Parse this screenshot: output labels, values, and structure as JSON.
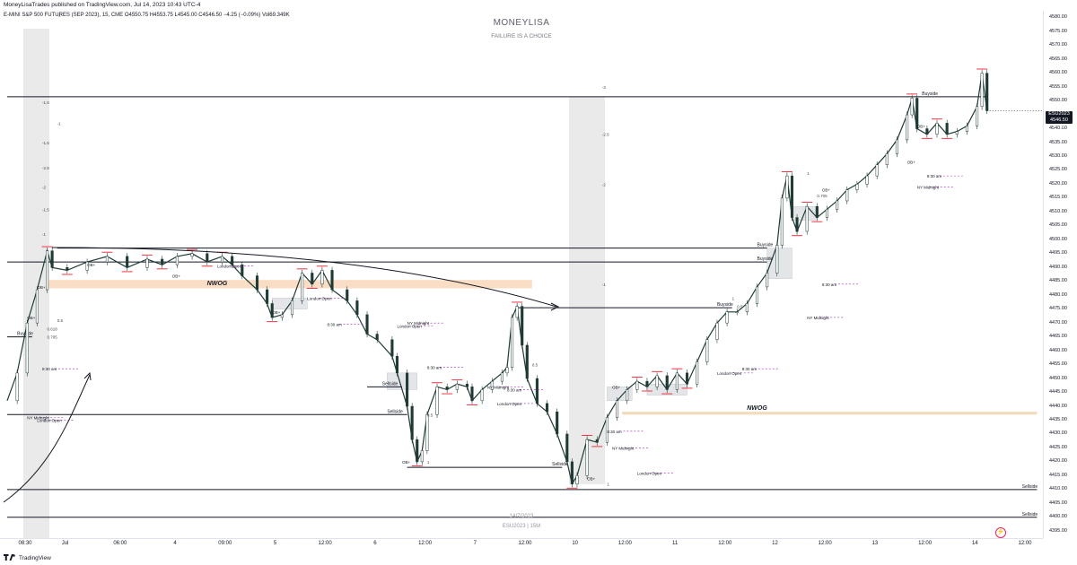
{
  "header": {
    "published_line": "MoneyLisaTrades published on TradingView.com, Jul 14, 2023 10:43 UTC-4",
    "symbol_line": "E-MINI S&P 500 FUTURES (SEP 2023), 15, CME  O4550.75  H4553.75  L4545.00  C4546.50  −4.25 (−0.09%)  Vol69.349K"
  },
  "watermark": {
    "title": "MONEYLISA",
    "subtitle": "FAILURE IS A CHOICE",
    "date": "14/7/2023",
    "symbol": "ESU2023 | 15M"
  },
  "price_label": {
    "symbol": "ESU2023",
    "price": "4546.50",
    "countdown": "01:47"
  },
  "footer": {
    "brand": "TradingView"
  },
  "colors": {
    "candle": "#1f3a35",
    "buyside_marker": "#f23645",
    "nwog_band": "#f8d9bf",
    "shaded_column": "#d9d9d9",
    "zone": "#d1d4dc"
  },
  "chart_data": {
    "type": "line",
    "title": "",
    "xlabel": "",
    "ylabel": "",
    "ylim": [
      4392.5,
      4582.5
    ],
    "y_ticks": [
      4580,
      4575,
      4570,
      4565,
      4560,
      4555,
      4550,
      4545,
      4540,
      4535,
      4530,
      4525,
      4520,
      4515,
      4510,
      4505,
      4500,
      4495,
      4490,
      4485,
      4480,
      4475,
      4470,
      4465,
      4460,
      4455,
      4450,
      4445,
      4440,
      4435,
      4430,
      4425,
      4420,
      4415,
      4410,
      4405,
      4400,
      4395
    ],
    "x_ticks": [
      {
        "label": "08:30",
        "t": 0
      },
      {
        "label": "Jul",
        "t": 0.08
      },
      {
        "label": "06:00",
        "t": 0.19
      },
      {
        "label": "4",
        "t": 0.3
      },
      {
        "label": "09:00",
        "t": 0.4
      },
      {
        "label": "5",
        "t": 0.5
      },
      {
        "label": "12:00",
        "t": 0.6
      },
      {
        "label": "6",
        "t": 0.7
      },
      {
        "label": "12:00",
        "t": 0.8
      },
      {
        "label": "7",
        "t": 0.9
      },
      {
        "label": "12:00",
        "t": 1.0
      },
      {
        "label": "10",
        "t": 1.1
      },
      {
        "label": "12:00",
        "t": 1.2
      },
      {
        "label": "11",
        "t": 1.3
      },
      {
        "label": "12:00",
        "t": 1.4
      },
      {
        "label": "12",
        "t": 1.5
      },
      {
        "label": "12:00",
        "t": 1.6
      },
      {
        "label": "13",
        "t": 1.7
      },
      {
        "label": "12:00",
        "t": 1.8
      },
      {
        "label": "14",
        "t": 1.9
      },
      {
        "label": "12:00",
        "t": 2.0
      }
    ],
    "series": [
      {
        "values": [
          [
            0,
            4442
          ],
          [
            0.02,
            4452
          ],
          [
            0.04,
            4470
          ],
          [
            0.06,
            4482
          ],
          [
            0.08,
            4496
          ],
          [
            0.09,
            4490
          ],
          [
            0.12,
            4489
          ],
          [
            0.16,
            4492
          ],
          [
            0.2,
            4494
          ],
          [
            0.24,
            4490
          ],
          [
            0.28,
            4493
          ],
          [
            0.31,
            4491
          ],
          [
            0.34,
            4494
          ],
          [
            0.37,
            4495
          ],
          [
            0.4,
            4492
          ],
          [
            0.43,
            4494
          ],
          [
            0.45,
            4491
          ],
          [
            0.47,
            4487
          ],
          [
            0.5,
            4482
          ],
          [
            0.52,
            4477
          ],
          [
            0.53,
            4472
          ],
          [
            0.55,
            4473
          ],
          [
            0.57,
            4478
          ],
          [
            0.59,
            4488
          ],
          [
            0.61,
            4484
          ],
          [
            0.63,
            4489
          ],
          [
            0.65,
            4482
          ],
          [
            0.68,
            4478
          ],
          [
            0.7,
            4473
          ],
          [
            0.72,
            4466
          ],
          [
            0.74,
            4464
          ],
          [
            0.77,
            4458
          ],
          [
            0.78,
            4452
          ],
          [
            0.8,
            4440
          ],
          [
            0.81,
            4428
          ],
          [
            0.82,
            4420
          ],
          [
            0.83,
            4424
          ],
          [
            0.84,
            4437
          ],
          [
            0.86,
            4447
          ],
          [
            0.88,
            4446
          ],
          [
            0.9,
            4448
          ],
          [
            0.92,
            4447
          ],
          [
            0.93,
            4442
          ],
          [
            0.95,
            4446
          ],
          [
            0.97,
            4449
          ],
          [
            0.99,
            4452
          ],
          [
            1.0,
            4454
          ],
          [
            1.01,
            4472
          ],
          [
            1.02,
            4476
          ],
          [
            1.03,
            4462
          ],
          [
            1.04,
            4450
          ],
          [
            1.06,
            4441
          ],
          [
            1.08,
            4438
          ],
          [
            1.1,
            4430
          ],
          [
            1.12,
            4420
          ],
          [
            1.13,
            4412
          ],
          [
            1.14,
            4415
          ],
          [
            1.16,
            4428
          ],
          [
            1.18,
            4427
          ],
          [
            1.2,
            4436
          ],
          [
            1.22,
            4442
          ],
          [
            1.24,
            4446
          ],
          [
            1.26,
            4449
          ],
          [
            1.28,
            4447
          ],
          [
            1.3,
            4451
          ],
          [
            1.32,
            4446
          ],
          [
            1.34,
            4452
          ],
          [
            1.36,
            4448
          ],
          [
            1.38,
            4456
          ],
          [
            1.4,
            4464
          ],
          [
            1.42,
            4470
          ],
          [
            1.44,
            4474
          ],
          [
            1.46,
            4474
          ],
          [
            1.48,
            4477
          ],
          [
            1.5,
            4483
          ],
          [
            1.52,
            4488
          ],
          [
            1.54,
            4498
          ],
          [
            1.55,
            4515
          ],
          [
            1.56,
            4523
          ],
          [
            1.57,
            4508
          ],
          [
            1.58,
            4503
          ],
          [
            1.6,
            4512
          ],
          [
            1.62,
            4508
          ],
          [
            1.64,
            4511
          ],
          [
            1.66,
            4514
          ],
          [
            1.68,
            4518
          ],
          [
            1.7,
            4520
          ],
          [
            1.72,
            4523
          ],
          [
            1.74,
            4527
          ],
          [
            1.76,
            4531
          ],
          [
            1.78,
            4536
          ],
          [
            1.8,
            4545
          ],
          [
            1.81,
            4551
          ],
          [
            1.82,
            4540
          ],
          [
            1.84,
            4538
          ],
          [
            1.86,
            4542
          ],
          [
            1.88,
            4538
          ],
          [
            1.9,
            4539
          ],
          [
            1.92,
            4541
          ],
          [
            1.94,
            4548
          ],
          [
            1.95,
            4560
          ],
          [
            1.96,
            4546.5
          ]
        ]
      }
    ]
  },
  "annotations": {
    "levels": [
      {
        "text": "Buyside",
        "price": 4551.5,
        "t0": 0,
        "t1": 1.96,
        "label_t": 1.83
      },
      {
        "text": "Buyside",
        "price": 4497,
        "t0": 0.1,
        "t1": 1.52,
        "label_t": 1.5
      },
      {
        "text": "Buyside",
        "price": 4492,
        "t0": 0,
        "t1": 1.52,
        "label_t": 1.5
      },
      {
        "text": "Buyside",
        "price": 4475.5,
        "t0": 1.02,
        "t1": 1.45,
        "label_t": 1.42
      },
      {
        "text": "Buyside",
        "price": 4465,
        "t0": 0,
        "t1": 0.05,
        "label_t": 0.02
      },
      {
        "text": "Sellside",
        "price": 4447,
        "t0": 0.72,
        "t1": 0.79,
        "label_t": 0.75
      },
      {
        "text": "Sellside",
        "price": 4437,
        "t0": 0,
        "t1": 0.8,
        "label_t": 0.76
      },
      {
        "text": "Sellside",
        "price": 4418,
        "t0": 0.8,
        "t1": 1.11,
        "label_t": 1.09
      },
      {
        "text": "Sellside",
        "price": 4410,
        "t0": 0,
        "t1": 2.06,
        "label_t": 2.03
      },
      {
        "text": "Sellside",
        "price": 4400,
        "t0": 0,
        "t1": 2.06,
        "label_t": 2.03
      }
    ],
    "zones": [
      {
        "text": "NWOG",
        "p_top": 4485.5,
        "p_bot": 4482.5,
        "t0": 0.08,
        "t1": 1.05,
        "label_t": 0.42,
        "kind": "nwog"
      },
      {
        "text": "NWOG",
        "p_top": 4438,
        "p_bot": 4437,
        "t0": 1.23,
        "t1": 2.06,
        "label_t": 1.5,
        "kind": "nwog-thin"
      }
    ],
    "session_labels": [
      {
        "text": "London Open",
        "price": 4490.5,
        "t": 0.42
      },
      {
        "text": "London Open",
        "price": 4479,
        "t": 0.6
      },
      {
        "text": "London Open",
        "price": 4469,
        "t": 0.78
      },
      {
        "text": "NY Midnight",
        "price": 4470,
        "t": 0.8
      },
      {
        "text": "8:30 am",
        "price": 4469.5,
        "t": 0.64
      },
      {
        "text": "8:30 am",
        "price": 4454,
        "t": 0.84
      },
      {
        "text": "8:30 am",
        "price": 4453.5,
        "t": 0.07
      },
      {
        "text": "NY Midnight",
        "price": 4436,
        "t": 0.04
      },
      {
        "text": "London Open",
        "price": 4435,
        "t": 0.06
      },
      {
        "text": "NY Midnight",
        "price": 4447,
        "t": 0.96
      },
      {
        "text": "8:30 am",
        "price": 4446,
        "t": 1.0
      },
      {
        "text": "London Open",
        "price": 4441,
        "t": 0.98
      },
      {
        "text": "8:30 am",
        "price": 4431,
        "t": 1.2
      },
      {
        "text": "NY Midnight",
        "price": 4425,
        "t": 1.21
      },
      {
        "text": "London Open",
        "price": 4416,
        "t": 1.26
      },
      {
        "text": "8:30 am",
        "price": 4453.5,
        "t": 1.47
      },
      {
        "text": "London Open",
        "price": 4452,
        "t": 1.42
      },
      {
        "text": "NY Midnight",
        "price": 4472,
        "t": 1.6
      },
      {
        "text": "8:30 am",
        "price": 4484,
        "t": 1.63
      },
      {
        "text": "8:30 am",
        "price": 4523,
        "t": 1.84
      },
      {
        "text": "NY Midnight",
        "price": 4519,
        "t": 1.82
      }
    ],
    "ob_labels": [
      {
        "text": "OB+",
        "price": 4491,
        "t": 0.16
      },
      {
        "text": "OB+",
        "price": 4487,
        "t": 0.33
      },
      {
        "text": "OB+",
        "price": 4483,
        "t": 0.06
      },
      {
        "text": "OB+",
        "price": 4474,
        "t": 0.53
      },
      {
        "text": "OB+",
        "price": 4472,
        "t": 0.04
      },
      {
        "text": "OB+",
        "price": 4420,
        "t": 0.79
      },
      {
        "text": "OB+",
        "price": 4447,
        "t": 1.21
      },
      {
        "text": "OB+",
        "price": 4414,
        "t": 1.16
      },
      {
        "text": "OB+",
        "price": 4518,
        "t": 1.63
      },
      {
        "text": "OB+",
        "price": 4528,
        "t": 1.8
      },
      {
        "text": "OB+",
        "price": 4541,
        "t": 1.82
      }
    ],
    "fib_labels": [
      {
        "text": "-2",
        "price": 4581,
        "t": 0.1
      },
      {
        "text": "-1.5",
        "price": 4549.5,
        "t": 0.07
      },
      {
        "text": "-1",
        "price": 4542,
        "t": 0.1
      },
      {
        "text": "-1.5",
        "price": 4535,
        "t": 0.07
      },
      {
        "text": "-2.5",
        "price": 4526,
        "t": 0.07
      },
      {
        "text": "-2",
        "price": 4519,
        "t": 0.07
      },
      {
        "text": "-1.5",
        "price": 4511,
        "t": 0.07
      },
      {
        "text": "-1",
        "price": 4502,
        "t": 0.07
      },
      {
        "text": "-3",
        "price": 4555,
        "t": 1.19
      },
      {
        "text": "-2.5",
        "price": 4538,
        "t": 1.19
      },
      {
        "text": "-2",
        "price": 4520,
        "t": 1.19
      },
      {
        "text": "-1",
        "price": 4484,
        "t": 1.19
      },
      {
        "text": "0.5",
        "price": 4471,
        "t": 0.1
      },
      {
        "text": "0.618",
        "price": 4468,
        "t": 0.08
      },
      {
        "text": "0.705",
        "price": 4465,
        "t": 0.08
      },
      {
        "text": "0.5",
        "price": 4455,
        "t": 1.05
      },
      {
        "text": "0.5",
        "price": 4437,
        "t": 0.84
      },
      {
        "text": "1",
        "price": 4420,
        "t": 0.84
      },
      {
        "text": "1",
        "price": 4412,
        "t": 1.2
      },
      {
        "text": "0.5",
        "price": 4476,
        "t": 1.46
      },
      {
        "text": "1",
        "price": 4479,
        "t": 1.45
      },
      {
        "text": "0.705",
        "price": 4516,
        "t": 1.62
      },
      {
        "text": "1",
        "price": 4524,
        "t": 1.6
      }
    ]
  }
}
